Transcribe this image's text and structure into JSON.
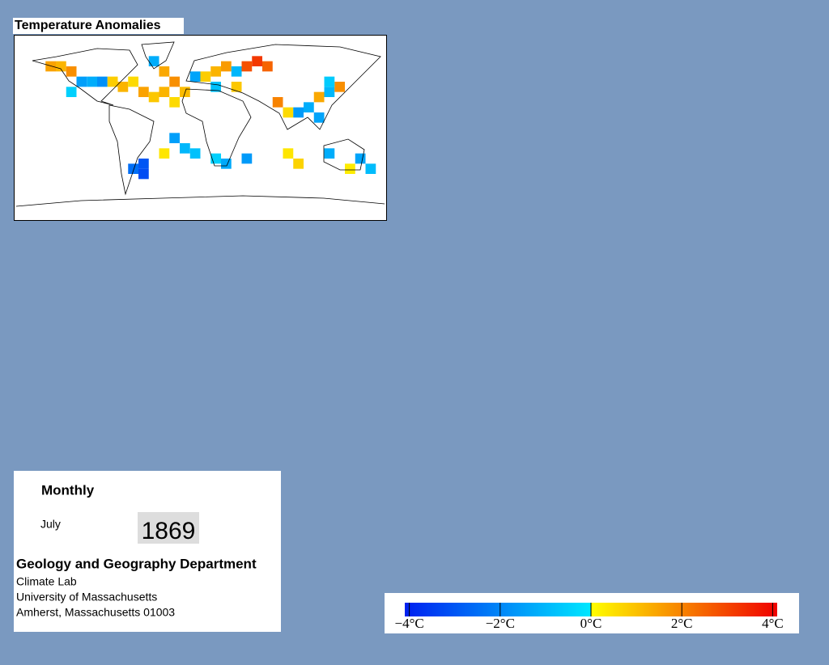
{
  "title": "Temperature Anomalies",
  "chart_data": {
    "type": "grid-map",
    "cells": [
      {
        "lon": -145,
        "lat": 60,
        "value": 1.5
      },
      {
        "lon": -135,
        "lat": 60,
        "value": 1.2
      },
      {
        "lon": -125,
        "lat": 55,
        "value": 1.8
      },
      {
        "lon": -115,
        "lat": 45,
        "value": -1.5
      },
      {
        "lon": -105,
        "lat": 45,
        "value": -1.2
      },
      {
        "lon": -95,
        "lat": 45,
        "value": -1.8
      },
      {
        "lon": -85,
        "lat": 45,
        "value": 0.8
      },
      {
        "lon": -75,
        "lat": 40,
        "value": 1.2
      },
      {
        "lon": -65,
        "lat": 45,
        "value": 0.6
      },
      {
        "lon": -125,
        "lat": 35,
        "value": -0.5
      },
      {
        "lon": -45,
        "lat": 65,
        "value": -1.2
      },
      {
        "lon": -35,
        "lat": 55,
        "value": 1.4
      },
      {
        "lon": -25,
        "lat": 45,
        "value": 1.8
      },
      {
        "lon": -35,
        "lat": 35,
        "value": 1.2
      },
      {
        "lon": -45,
        "lat": 30,
        "value": 0.9
      },
      {
        "lon": -55,
        "lat": 35,
        "value": 1.5
      },
      {
        "lon": -25,
        "lat": 25,
        "value": 0.6
      },
      {
        "lon": -15,
        "lat": 35,
        "value": 1.1
      },
      {
        "lon": -5,
        "lat": 50,
        "value": -1.4
      },
      {
        "lon": 5,
        "lat": 50,
        "value": 0.8
      },
      {
        "lon": 15,
        "lat": 55,
        "value": 1.2
      },
      {
        "lon": 25,
        "lat": 60,
        "value": 1.6
      },
      {
        "lon": 35,
        "lat": 55,
        "value": -1.0
      },
      {
        "lon": 45,
        "lat": 60,
        "value": 2.8
      },
      {
        "lon": 55,
        "lat": 65,
        "value": 3.2
      },
      {
        "lon": 65,
        "lat": 60,
        "value": 2.5
      },
      {
        "lon": 35,
        "lat": 40,
        "value": 0.9
      },
      {
        "lon": 15,
        "lat": 40,
        "value": -0.8
      },
      {
        "lon": 75,
        "lat": 25,
        "value": 2.0
      },
      {
        "lon": 85,
        "lat": 15,
        "value": 0.6
      },
      {
        "lon": 95,
        "lat": 15,
        "value": -1.6
      },
      {
        "lon": 105,
        "lat": 20,
        "value": -1.2
      },
      {
        "lon": 115,
        "lat": 30,
        "value": 1.4
      },
      {
        "lon": 125,
        "lat": 35,
        "value": -1.0
      },
      {
        "lon": 135,
        "lat": 40,
        "value": 1.8
      },
      {
        "lon": 125,
        "lat": 45,
        "value": -0.6
      },
      {
        "lon": 115,
        "lat": 10,
        "value": -1.4
      },
      {
        "lon": -25,
        "lat": -10,
        "value": -1.5
      },
      {
        "lon": -15,
        "lat": -20,
        "value": -1.0
      },
      {
        "lon": -35,
        "lat": -25,
        "value": 0.4
      },
      {
        "lon": -55,
        "lat": -35,
        "value": -3.0
      },
      {
        "lon": -65,
        "lat": -40,
        "value": -2.5
      },
      {
        "lon": -55,
        "lat": -45,
        "value": -3.2
      },
      {
        "lon": -5,
        "lat": -25,
        "value": -0.8
      },
      {
        "lon": 25,
        "lat": -35,
        "value": -1.3
      },
      {
        "lon": 45,
        "lat": -30,
        "value": -1.6
      },
      {
        "lon": 15,
        "lat": -30,
        "value": -0.5
      },
      {
        "lon": 85,
        "lat": -25,
        "value": 0.4
      },
      {
        "lon": 95,
        "lat": -35,
        "value": 0.7
      },
      {
        "lon": 125,
        "lat": -25,
        "value": -1.2
      },
      {
        "lon": 155,
        "lat": -30,
        "value": -1.4
      },
      {
        "lon": 165,
        "lat": -40,
        "value": -0.9
      },
      {
        "lon": 145,
        "lat": -40,
        "value": 0.3
      }
    ],
    "cell_size": 10,
    "colorbar": {
      "lim": [
        -4.1,
        4.1
      ],
      "ticks": [
        {
          "value": -4,
          "label": "−4°C"
        },
        {
          "value": -2,
          "label": "−2°C"
        },
        {
          "value": 0,
          "label": "0°C"
        },
        {
          "value": 2,
          "label": "2°C"
        },
        {
          "value": 4,
          "label": "4°C"
        }
      ],
      "colors_negative": [
        "#0020f0",
        "#00e8ff"
      ],
      "colors_positive": [
        "#ffff00",
        "#f00000"
      ]
    }
  },
  "info": {
    "period": "Monthly",
    "month": "July",
    "year": "1869",
    "department": "Geology and Geography Department",
    "lines": [
      "Climate Lab",
      "University of Massachusetts",
      "Amherst, Massachusetts 01003"
    ]
  }
}
